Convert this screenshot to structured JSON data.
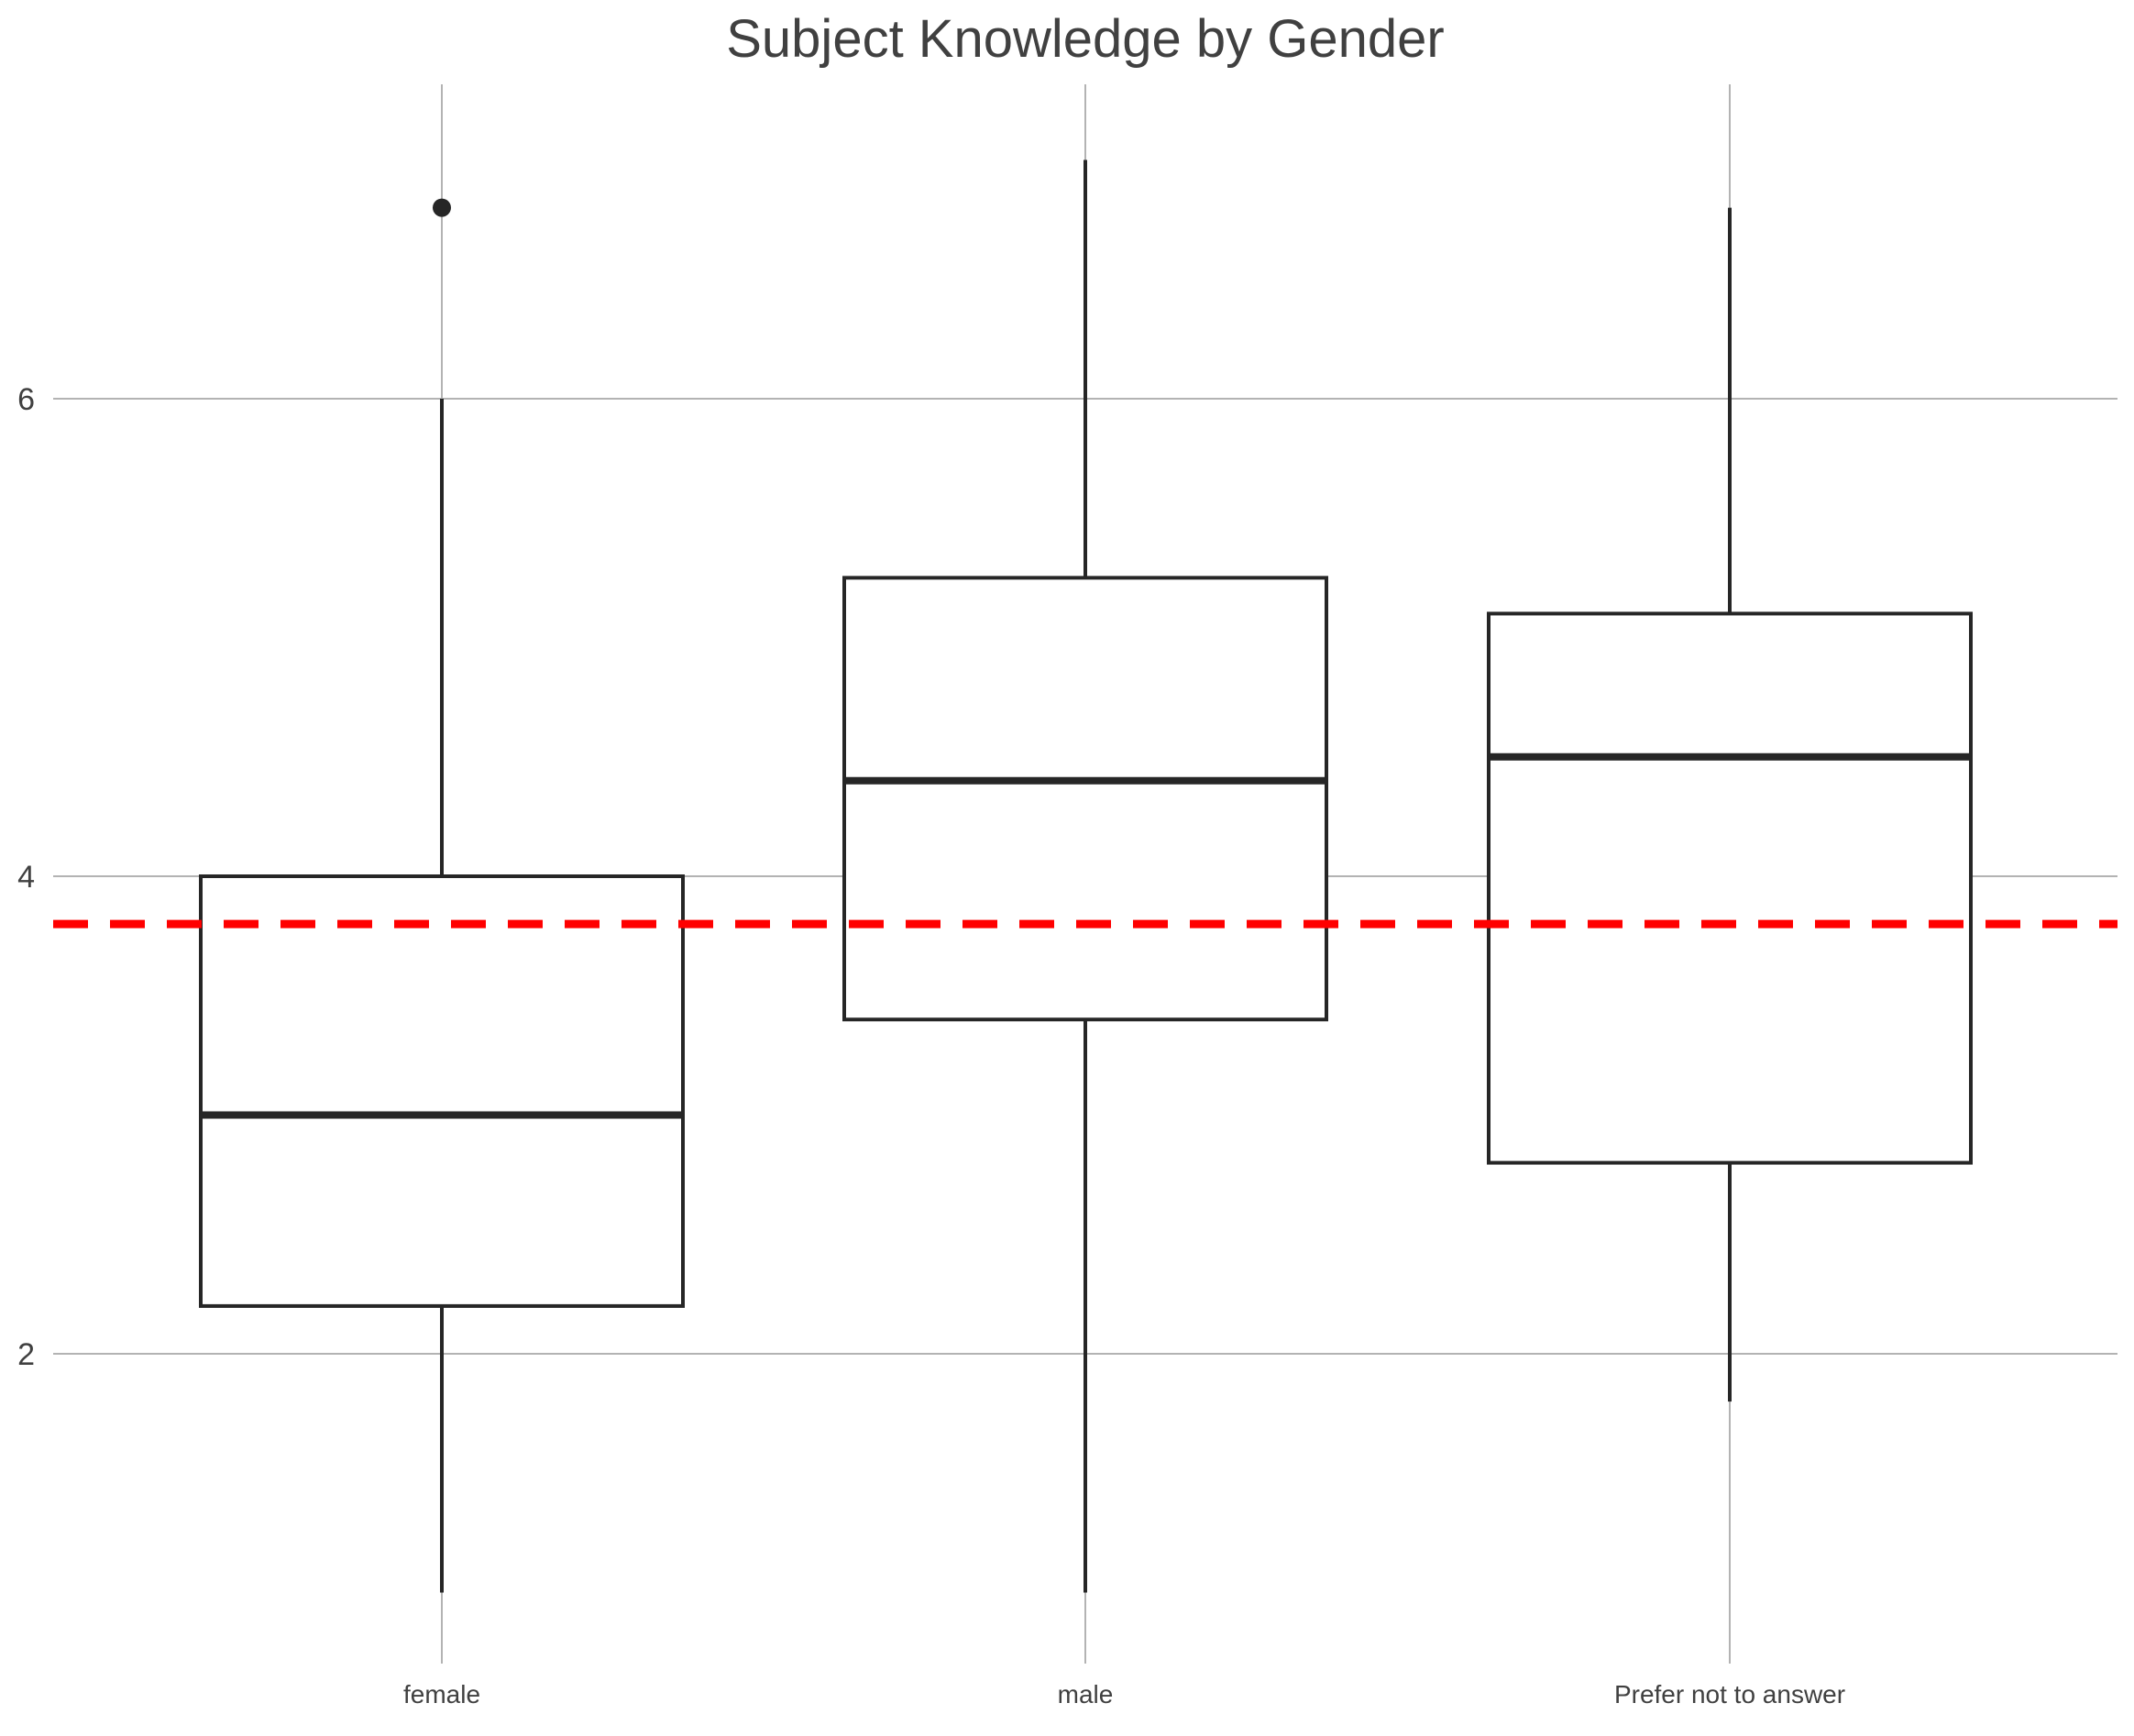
{
  "chart_data": {
    "type": "boxplot",
    "title": "Subject Knowledge by Gender",
    "xlabel": "",
    "ylabel": "",
    "categories": [
      "female",
      "male",
      "Prefer not to answer"
    ],
    "boxes": [
      {
        "category": "female",
        "whisker_low": 1.0,
        "q1": 2.2,
        "median": 3.0,
        "q3": 4.0,
        "whisker_high": 6.0,
        "outliers": [
          6.8
        ]
      },
      {
        "category": "male",
        "whisker_low": 1.0,
        "q1": 3.4,
        "median": 4.4,
        "q3": 5.25,
        "whisker_high": 7.0,
        "outliers": []
      },
      {
        "category": "Prefer not to answer",
        "whisker_low": 1.8,
        "q1": 2.8,
        "median": 4.5,
        "q3": 5.1,
        "whisker_high": 6.8,
        "outliers": []
      }
    ],
    "reference_line": {
      "value": 3.8,
      "color": "#ff0000",
      "style": "dashed"
    },
    "y_ticks": [
      2,
      4,
      6
    ],
    "ylim": [
      0.7,
      7.3
    ],
    "grid": true,
    "legend": "none",
    "colors": {
      "box_stroke": "#262626",
      "grid": "#b3b3b3",
      "text": "#404040",
      "reference": "#ff0000"
    }
  }
}
